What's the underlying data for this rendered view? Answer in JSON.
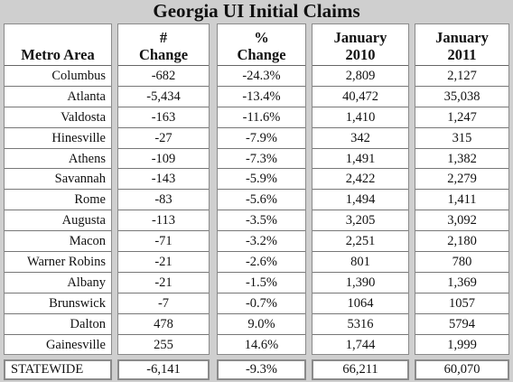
{
  "title": "Georgia UI Initial Claims",
  "headers": {
    "area": [
      "",
      "Metro Area"
    ],
    "change": [
      "#",
      "Change"
    ],
    "pct": [
      "%",
      "Change"
    ],
    "jan2010": [
      "January",
      "2010"
    ],
    "jan2011": [
      "January",
      "2011"
    ]
  },
  "rows": [
    {
      "area": "Columbus",
      "change": "-682",
      "pct": "-24.3%",
      "jan2010": "2,809",
      "jan2011": "2,127"
    },
    {
      "area": "Atlanta",
      "change": "-5,434",
      "pct": "-13.4%",
      "jan2010": "40,472",
      "jan2011": "35,038"
    },
    {
      "area": "Valdosta",
      "change": "-163",
      "pct": "-11.6%",
      "jan2010": "1,410",
      "jan2011": "1,247"
    },
    {
      "area": "Hinesville",
      "change": "-27",
      "pct": "-7.9%",
      "jan2010": "342",
      "jan2011": "315"
    },
    {
      "area": "Athens",
      "change": "-109",
      "pct": "-7.3%",
      "jan2010": "1,491",
      "jan2011": "1,382"
    },
    {
      "area": "Savannah",
      "change": "-143",
      "pct": "-5.9%",
      "jan2010": "2,422",
      "jan2011": "2,279"
    },
    {
      "area": "Rome",
      "change": "-83",
      "pct": "-5.6%",
      "jan2010": "1,494",
      "jan2011": "1,411"
    },
    {
      "area": "Augusta",
      "change": "-113",
      "pct": "-3.5%",
      "jan2010": "3,205",
      "jan2011": "3,092"
    },
    {
      "area": "Macon",
      "change": "-71",
      "pct": "-3.2%",
      "jan2010": "2,251",
      "jan2011": "2,180"
    },
    {
      "area": "Warner Robins",
      "change": "-21",
      "pct": "-2.6%",
      "jan2010": "801",
      "jan2011": "780"
    },
    {
      "area": "Albany",
      "change": "-21",
      "pct": "-1.5%",
      "jan2010": "1,390",
      "jan2011": "1,369"
    },
    {
      "area": "Brunswick",
      "change": "-7",
      "pct": "-0.7%",
      "jan2010": "1064",
      "jan2011": "1057"
    },
    {
      "area": "Dalton",
      "change": "478",
      "pct": "9.0%",
      "jan2010": "5316",
      "jan2011": "5794"
    },
    {
      "area": "Gainesville",
      "change": "255",
      "pct": "14.6%",
      "jan2010": "1,744",
      "jan2011": "1,999"
    }
  ],
  "total": {
    "area": "STATEWIDE",
    "change": "-6,141",
    "pct": "-9.3%",
    "jan2010": "66,211",
    "jan2011": "60,070"
  }
}
